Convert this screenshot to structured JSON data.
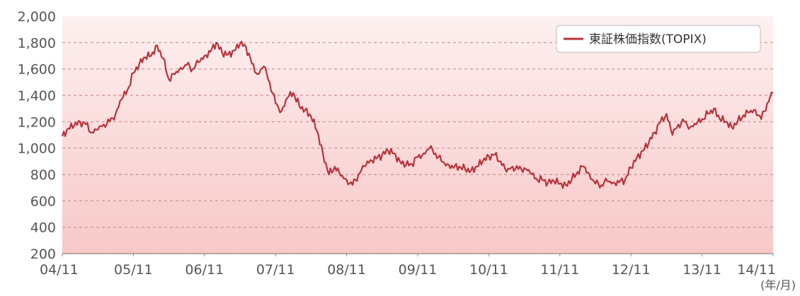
{
  "chart_data": {
    "type": "line",
    "title": "",
    "xlabel": "",
    "ylabel": "",
    "x_unit_label": "(年/月)",
    "ylim": [
      200,
      2000
    ],
    "y_ticks": [
      200,
      400,
      600,
      800,
      1000,
      1200,
      1400,
      1600,
      1800,
      2000
    ],
    "y_tick_labels": [
      "200",
      "400",
      "600",
      "800",
      "1,000",
      "1,200",
      "1,400",
      "1,600",
      "1,800",
      "2,000"
    ],
    "x_ticks": [
      "04/11",
      "05/11",
      "06/11",
      "07/11",
      "08/11",
      "09/11",
      "10/11",
      "11/11",
      "12/11",
      "13/11",
      "14/11"
    ],
    "grid": true,
    "legend_position": "top-right",
    "background": "pink vertical gradient",
    "series": [
      {
        "name": "東証株価指数(TOPIX)",
        "color": "#b8323a",
        "x": [
          "2004-11",
          "2004-12",
          "2005-01",
          "2005-02",
          "2005-03",
          "2005-04",
          "2005-05",
          "2005-06",
          "2005-07",
          "2005-08",
          "2005-09",
          "2005-10",
          "2005-11",
          "2005-12",
          "2006-01",
          "2006-02",
          "2006-03",
          "2006-04",
          "2006-05",
          "2006-06",
          "2006-07",
          "2006-08",
          "2006-09",
          "2006-10",
          "2006-11",
          "2006-12",
          "2007-01",
          "2007-02",
          "2007-03",
          "2007-04",
          "2007-05",
          "2007-06",
          "2007-07",
          "2007-08",
          "2007-09",
          "2007-10",
          "2007-11",
          "2007-12",
          "2008-01",
          "2008-02",
          "2008-03",
          "2008-04",
          "2008-05",
          "2008-06",
          "2008-07",
          "2008-08",
          "2008-09",
          "2008-10",
          "2008-11",
          "2008-12",
          "2009-01",
          "2009-02",
          "2009-03",
          "2009-04",
          "2009-05",
          "2009-06",
          "2009-07",
          "2009-08",
          "2009-09",
          "2009-10",
          "2009-11",
          "2009-12",
          "2010-01",
          "2010-02",
          "2010-03",
          "2010-04",
          "2010-05",
          "2010-06",
          "2010-07",
          "2010-08",
          "2010-09",
          "2010-10",
          "2010-11",
          "2010-12",
          "2011-01",
          "2011-02",
          "2011-03",
          "2011-04",
          "2011-05",
          "2011-06",
          "2011-07",
          "2011-08",
          "2011-09",
          "2011-10",
          "2011-11",
          "2011-12",
          "2012-01",
          "2012-02",
          "2012-03",
          "2012-04",
          "2012-05",
          "2012-06",
          "2012-07",
          "2012-08",
          "2012-09",
          "2012-10",
          "2012-11",
          "2012-12",
          "2013-01",
          "2013-02",
          "2013-03",
          "2013-04",
          "2013-05",
          "2013-06",
          "2013-07",
          "2013-08",
          "2013-09",
          "2013-10",
          "2013-11",
          "2013-12",
          "2014-01",
          "2014-02",
          "2014-03",
          "2014-04",
          "2014-05",
          "2014-06",
          "2014-07",
          "2014-08",
          "2014-09",
          "2014-10",
          "2014-11"
        ],
        "values": [
          1090,
          1150,
          1170,
          1200,
          1180,
          1120,
          1140,
          1180,
          1200,
          1260,
          1370,
          1440,
          1570,
          1640,
          1690,
          1700,
          1780,
          1680,
          1520,
          1560,
          1610,
          1630,
          1600,
          1650,
          1700,
          1730,
          1800,
          1720,
          1710,
          1740,
          1790,
          1770,
          1640,
          1560,
          1620,
          1500,
          1340,
          1280,
          1380,
          1420,
          1320,
          1290,
          1240,
          1130,
          960,
          800,
          860,
          790,
          760,
          720,
          800,
          860,
          910,
          920,
          950,
          980,
          960,
          900,
          870,
          880,
          930,
          960,
          1000,
          960,
          900,
          880,
          850,
          860,
          840,
          830,
          860,
          900,
          940,
          950,
          900,
          820,
          860,
          840,
          850,
          810,
          770,
          760,
          740,
          750,
          730,
          720,
          760,
          820,
          860,
          800,
          730,
          720,
          750,
          740,
          740,
          760,
          850,
          930,
          980,
          1040,
          1120,
          1200,
          1260,
          1100,
          1180,
          1200,
          1160,
          1180,
          1220,
          1260,
          1300,
          1220,
          1200,
          1160,
          1200,
          1250,
          1270,
          1290,
          1220,
          1340,
          1420
        ]
      }
    ]
  }
}
